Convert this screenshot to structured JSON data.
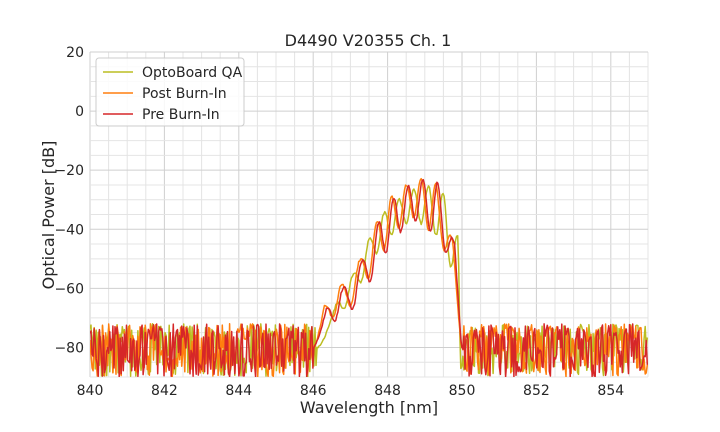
{
  "chart_data": {
    "type": "line",
    "title": "D4490 V20355 Ch. 1",
    "xlabel": "Wavelength [nm]",
    "ylabel": "Optical Power [dB]",
    "xlim": [
      840,
      855
    ],
    "ylim": [
      -90,
      20
    ],
    "xticks": [
      840,
      842,
      844,
      846,
      848,
      850,
      852,
      854
    ],
    "xtick_labels": [
      "840",
      "842",
      "844",
      "846",
      "848",
      "850",
      "852",
      "854"
    ],
    "yticks": [
      -80,
      -60,
      -40,
      -20,
      0,
      20
    ],
    "ytick_labels": [
      "−80",
      "−60",
      "−40",
      "−20",
      "0",
      "20"
    ],
    "grid": true,
    "legend": "top-left",
    "noise_floor": {
      "min": -90,
      "max": -72,
      "typical": -80
    },
    "series": [
      {
        "name": "OptoBoard QA",
        "color": "#bcbd22",
        "peaks_x": [
          846.6,
          847.05,
          847.5,
          847.9,
          848.3,
          848.7,
          849.1,
          849.5,
          849.9
        ],
        "peaks_y": [
          -66,
          -56,
          -43.5,
          -34.5,
          -30,
          -26.5,
          -25.5,
          -28,
          -43
        ],
        "nulls_y": [
          -69,
          -67,
          -58,
          -48,
          -42,
          -38,
          -38,
          -42,
          -53
        ],
        "band": [
          846.1,
          849.95
        ]
      },
      {
        "name": "Post Burn-In",
        "color": "#ff7f0e",
        "peaks_x": [
          846.3,
          846.75,
          847.25,
          847.7,
          848.1,
          848.5,
          848.9,
          849.3,
          849.75
        ],
        "peaks_y": [
          -66,
          -59,
          -50.5,
          -37.5,
          -29,
          -25,
          -23,
          -24.5,
          -44
        ],
        "nulls_y": [
          -76,
          -70,
          -66,
          -57,
          -47,
          -40,
          -36,
          -40,
          -47
        ],
        "band": [
          846.0,
          850.0
        ]
      },
      {
        "name": "Pre Burn-In",
        "color": "#d62728",
        "peaks_x": [
          846.35,
          846.8,
          847.3,
          847.75,
          848.15,
          848.55,
          848.95,
          849.35,
          849.8
        ],
        "peaks_y": [
          -67,
          -60,
          -51,
          -38,
          -29.5,
          -25.5,
          -23,
          -24,
          -45
        ],
        "nulls_y": [
          -77,
          -71,
          -67,
          -58,
          -48,
          -41,
          -37,
          -41,
          -48
        ],
        "band": [
          846.0,
          850.0
        ]
      }
    ]
  }
}
